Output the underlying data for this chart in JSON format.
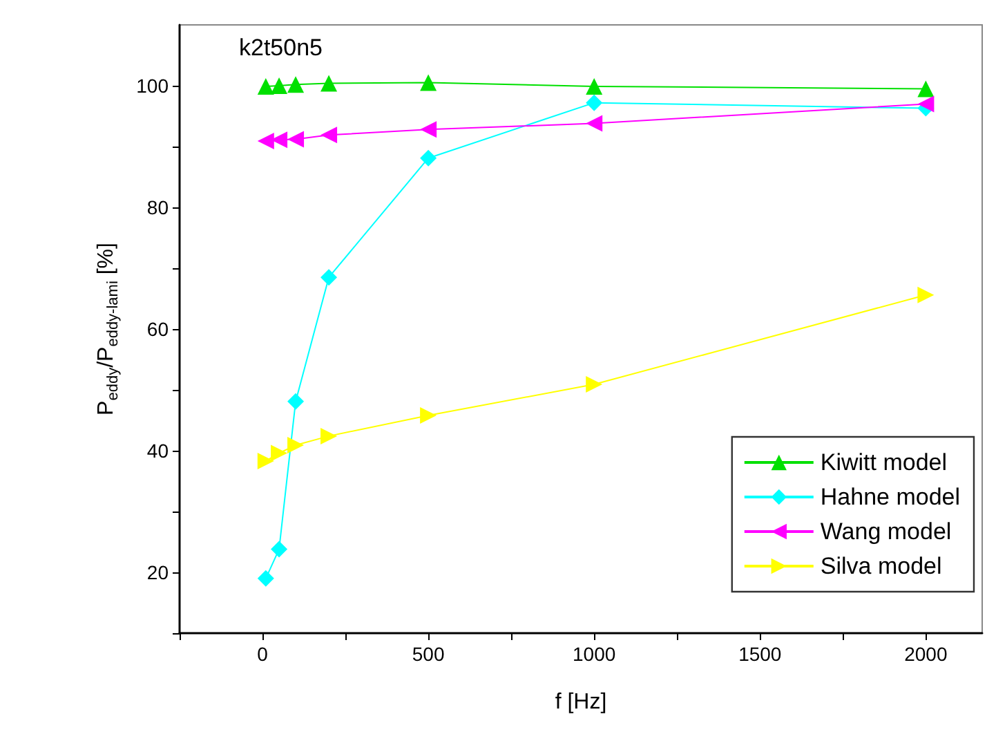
{
  "chart_data": {
    "type": "line",
    "annotations": [
      "k2t50n5"
    ],
    "xlabel": "f [Hz]",
    "ylabel": "P$_{eddy}$/P$_{eddy-lami}$ [%]",
    "x": [
      10,
      50,
      100,
      200,
      500,
      1000,
      2000
    ],
    "series": [
      {
        "name": "Kiwitt model",
        "color": "#00e000",
        "marker": "triangle",
        "values": [
          99.9,
          100,
          100.2,
          100.4,
          100.5,
          99.9,
          99.5
        ]
      },
      {
        "name": "Hahne model",
        "color": "#00ffff",
        "marker": "diamond",
        "values": [
          19,
          23.8,
          48.1,
          68.5,
          88.1,
          97.2,
          96.3
        ]
      },
      {
        "name": "Wang model",
        "color": "#ff00ff",
        "marker": "triangle-left",
        "values": [
          90.9,
          91.1,
          91.2,
          91.9,
          92.8,
          93.8,
          97.0
        ]
      },
      {
        "name": "Silva model",
        "color": "#ffff00",
        "marker": "triangle-right",
        "values": [
          38.3,
          39.6,
          40.9,
          42.4,
          45.8,
          50.9,
          65.6
        ]
      }
    ],
    "xlim": [
      -250,
      2170
    ],
    "xticks": [
      {
        "value": -250,
        "label": null
      },
      0,
      {
        "value": 250,
        "label": null
      },
      500,
      {
        "value": 750,
        "label": null
      },
      1000,
      {
        "value": 1250,
        "label": null
      },
      1500,
      {
        "value": 1750,
        "label": null
      },
      2000
    ],
    "ylim": [
      10,
      110
    ],
    "yticks": [
      {
        "value": 10,
        "label": null
      },
      20,
      {
        "value": 30,
        "label": null
      },
      40,
      {
        "value": 50,
        "label": null
      },
      60,
      {
        "value": 70,
        "label": null
      },
      80,
      {
        "value": 90,
        "label": null
      },
      100
    ],
    "grid": false,
    "legend": "bottom right",
    "line_style": "solid"
  }
}
